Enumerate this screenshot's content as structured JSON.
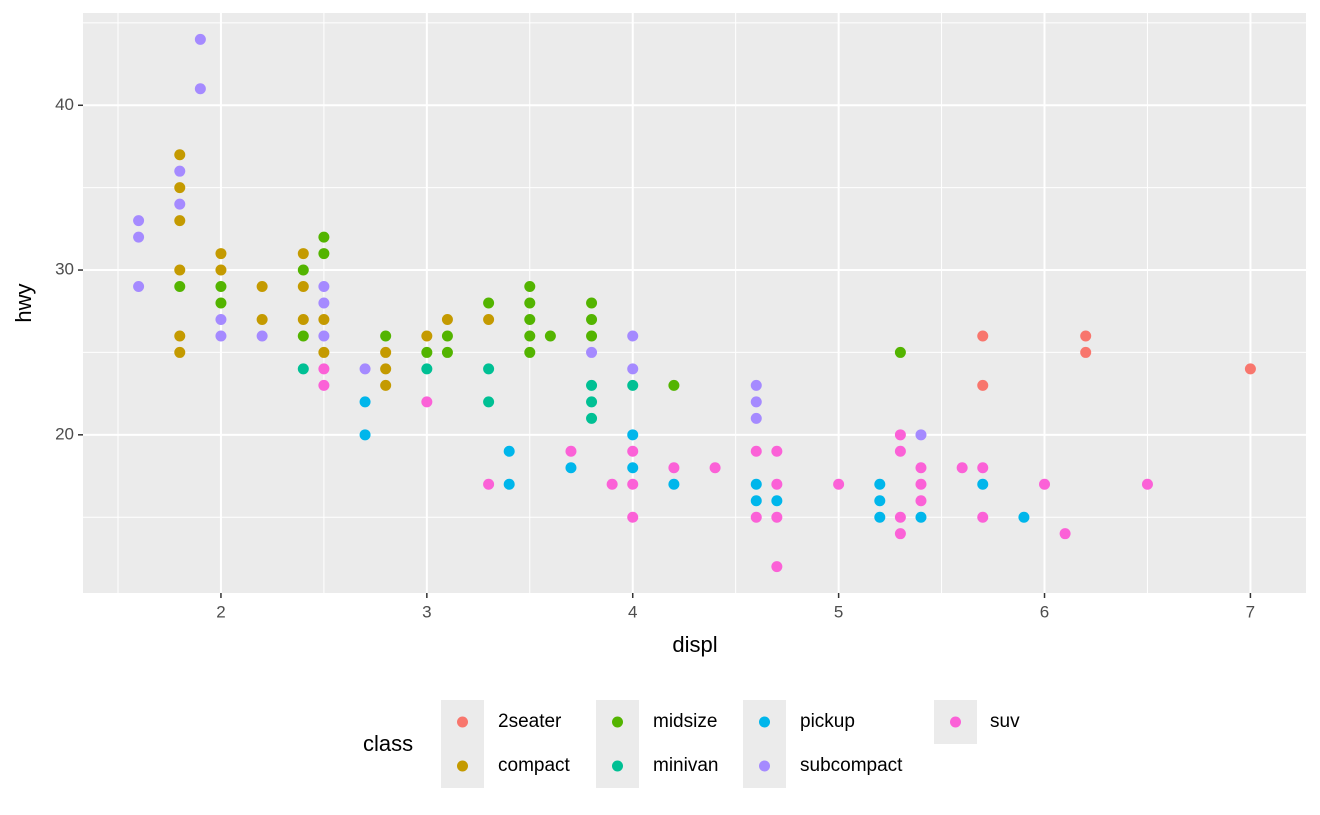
{
  "chart_data": {
    "type": "scatter",
    "x_label": "displ",
    "y_label": "hwy",
    "xlim": [
      1.33,
      7.27
    ],
    "xticks": [
      2,
      3,
      4,
      5,
      6,
      7
    ],
    "ylim": [
      10.4,
      45.6
    ],
    "yticks": [
      20,
      30,
      40
    ],
    "grid": true,
    "legend": "bottom",
    "legend_title": "class",
    "series": [
      {
        "name": "2seater",
        "color": "#F8766D",
        "x": [
          5.7,
          5.7,
          6.2,
          6.2,
          7.0
        ],
        "values": [
          26,
          23,
          26,
          25,
          24
        ]
      },
      {
        "name": "compact",
        "color": "#C49A00",
        "x": [
          1.8,
          1.8,
          1.8,
          1.8,
          1.8,
          1.8,
          2.0,
          2.0,
          2.2,
          2.2,
          2.4,
          2.4,
          2.4,
          2.5,
          2.5,
          2.8,
          2.8,
          2.8,
          3.0,
          3.1,
          3.3
        ],
        "values": [
          37,
          35,
          33,
          30,
          26,
          25,
          31,
          30,
          29,
          27,
          31,
          29,
          27,
          27,
          25,
          25,
          24,
          23,
          26,
          27,
          27
        ]
      },
      {
        "name": "midsize",
        "color": "#53B400",
        "x": [
          1.8,
          2.0,
          2.0,
          2.4,
          2.4,
          2.5,
          2.5,
          2.8,
          3.0,
          3.1,
          3.1,
          3.3,
          3.5,
          3.5,
          3.5,
          3.5,
          3.5,
          3.6,
          3.8,
          3.8,
          3.8,
          4.2,
          5.3
        ],
        "values": [
          29,
          29,
          28,
          30,
          26,
          32,
          31,
          26,
          25,
          26,
          25,
          28,
          29,
          28,
          27,
          26,
          25,
          26,
          28,
          27,
          26,
          23,
          25
        ]
      },
      {
        "name": "minivan",
        "color": "#00C094",
        "x": [
          2.4,
          3.0,
          3.3,
          3.3,
          3.8,
          3.8,
          3.8,
          4.0
        ],
        "values": [
          24,
          24,
          24,
          22,
          23,
          22,
          21,
          23
        ]
      },
      {
        "name": "pickup",
        "color": "#00B6EB",
        "x": [
          2.7,
          2.7,
          3.4,
          3.4,
          3.7,
          4.0,
          4.0,
          4.2,
          4.6,
          4.6,
          4.7,
          5.2,
          5.2,
          5.2,
          5.4,
          5.7,
          5.9
        ],
        "values": [
          22,
          20,
          19,
          17,
          18,
          20,
          18,
          17,
          17,
          16,
          16,
          17,
          16,
          15,
          15,
          17,
          15
        ]
      },
      {
        "name": "subcompact",
        "color": "#A58AFF",
        "x": [
          1.6,
          1.6,
          1.6,
          1.8,
          1.8,
          1.9,
          1.9,
          2.0,
          2.0,
          2.2,
          2.5,
          2.5,
          2.5,
          2.7,
          3.8,
          4.0,
          4.0,
          4.6,
          4.6,
          4.6,
          5.4
        ],
        "values": [
          33,
          32,
          29,
          36,
          34,
          44,
          41,
          27,
          26,
          26,
          29,
          28,
          26,
          24,
          25,
          26,
          24,
          23,
          22,
          21,
          20
        ]
      },
      {
        "name": "suv",
        "color": "#FB61D7",
        "x": [
          2.5,
          2.5,
          3.0,
          3.3,
          3.7,
          3.9,
          4.0,
          4.0,
          4.0,
          4.2,
          4.4,
          4.6,
          4.6,
          4.7,
          4.7,
          4.7,
          4.7,
          5.0,
          5.3,
          5.3,
          5.3,
          5.3,
          5.4,
          5.4,
          5.4,
          5.6,
          5.7,
          5.7,
          6.0,
          6.1,
          6.5
        ],
        "values": [
          24,
          23,
          22,
          17,
          19,
          17,
          19,
          17,
          15,
          18,
          18,
          19,
          15,
          19,
          17,
          15,
          12,
          17,
          20,
          19,
          15,
          14,
          18,
          17,
          16,
          18,
          18,
          15,
          17,
          14,
          17
        ]
      }
    ]
  }
}
